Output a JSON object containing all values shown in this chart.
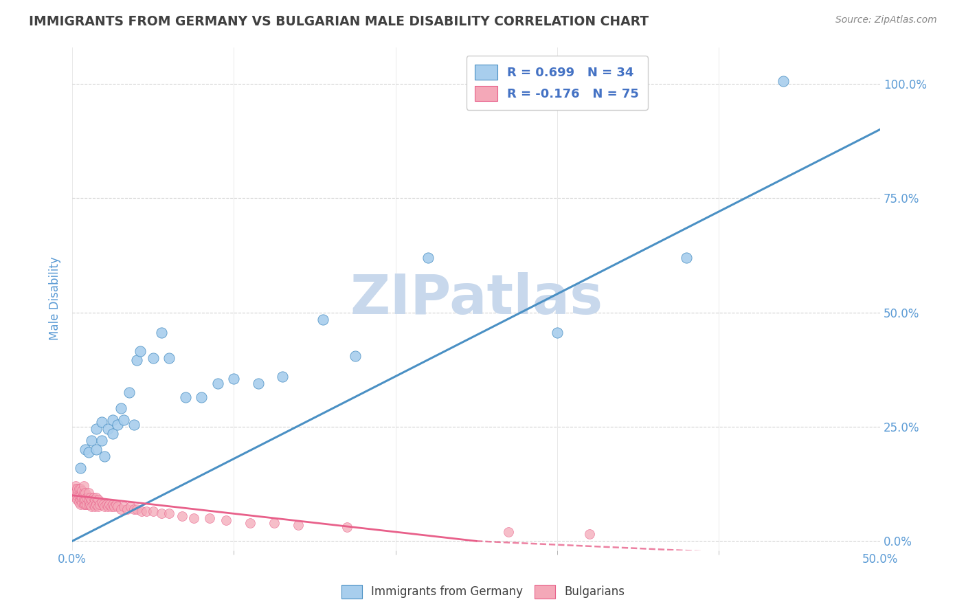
{
  "title": "IMMIGRANTS FROM GERMANY VS BULGARIAN MALE DISABILITY CORRELATION CHART",
  "source": "Source: ZipAtlas.com",
  "ylabel": "Male Disability",
  "xlim": [
    0.0,
    0.5
  ],
  "ylim": [
    -0.02,
    1.08
  ],
  "legend1_text": "R = 0.699   N = 34",
  "legend2_text": "R = -0.176   N = 75",
  "blue_color": "#A8CEED",
  "pink_color": "#F4A8B8",
  "blue_line_color": "#4A90C4",
  "pink_line_color": "#E8608A",
  "title_color": "#404040",
  "axis_label_color": "#5B9BD5",
  "watermark_color": "#C8D8EC",
  "blue_trend": [
    0.0,
    0.0,
    0.5,
    0.9
  ],
  "pink_trend_solid": [
    0.0,
    0.1,
    0.25,
    0.0
  ],
  "pink_trend_dashed": [
    0.25,
    0.0,
    0.5,
    -0.04
  ],
  "blue_scatter_x": [
    0.005,
    0.008,
    0.01,
    0.012,
    0.015,
    0.015,
    0.018,
    0.018,
    0.02,
    0.022,
    0.025,
    0.025,
    0.028,
    0.03,
    0.032,
    0.035,
    0.038,
    0.04,
    0.042,
    0.05,
    0.055,
    0.06,
    0.07,
    0.08,
    0.09,
    0.1,
    0.115,
    0.13,
    0.155,
    0.175,
    0.22,
    0.3,
    0.38,
    0.44
  ],
  "blue_scatter_y": [
    0.16,
    0.2,
    0.195,
    0.22,
    0.2,
    0.245,
    0.22,
    0.26,
    0.185,
    0.245,
    0.235,
    0.265,
    0.255,
    0.29,
    0.265,
    0.325,
    0.255,
    0.395,
    0.415,
    0.4,
    0.455,
    0.4,
    0.315,
    0.315,
    0.345,
    0.355,
    0.345,
    0.36,
    0.485,
    0.405,
    0.62,
    0.455,
    0.62,
    1.005
  ],
  "pink_scatter_x": [
    0.001,
    0.001,
    0.002,
    0.002,
    0.002,
    0.003,
    0.003,
    0.003,
    0.004,
    0.004,
    0.004,
    0.005,
    0.005,
    0.005,
    0.005,
    0.006,
    0.006,
    0.006,
    0.007,
    0.007,
    0.007,
    0.007,
    0.008,
    0.008,
    0.008,
    0.009,
    0.009,
    0.01,
    0.01,
    0.01,
    0.011,
    0.011,
    0.012,
    0.012,
    0.013,
    0.013,
    0.014,
    0.014,
    0.015,
    0.015,
    0.016,
    0.016,
    0.017,
    0.018,
    0.019,
    0.02,
    0.021,
    0.022,
    0.023,
    0.024,
    0.025,
    0.026,
    0.027,
    0.028,
    0.03,
    0.032,
    0.034,
    0.036,
    0.038,
    0.04,
    0.043,
    0.046,
    0.05,
    0.055,
    0.06,
    0.068,
    0.075,
    0.085,
    0.095,
    0.11,
    0.125,
    0.14,
    0.17,
    0.27,
    0.32
  ],
  "pink_scatter_y": [
    0.1,
    0.115,
    0.095,
    0.105,
    0.12,
    0.09,
    0.1,
    0.115,
    0.085,
    0.1,
    0.115,
    0.08,
    0.09,
    0.1,
    0.115,
    0.085,
    0.095,
    0.11,
    0.08,
    0.09,
    0.105,
    0.12,
    0.08,
    0.09,
    0.105,
    0.08,
    0.095,
    0.08,
    0.09,
    0.105,
    0.08,
    0.095,
    0.075,
    0.09,
    0.08,
    0.095,
    0.075,
    0.09,
    0.08,
    0.095,
    0.075,
    0.09,
    0.08,
    0.085,
    0.08,
    0.075,
    0.08,
    0.075,
    0.08,
    0.075,
    0.08,
    0.075,
    0.08,
    0.075,
    0.07,
    0.075,
    0.07,
    0.075,
    0.07,
    0.07,
    0.065,
    0.065,
    0.065,
    0.06,
    0.06,
    0.055,
    0.05,
    0.05,
    0.045,
    0.04,
    0.04,
    0.035,
    0.03,
    0.02,
    0.015
  ]
}
